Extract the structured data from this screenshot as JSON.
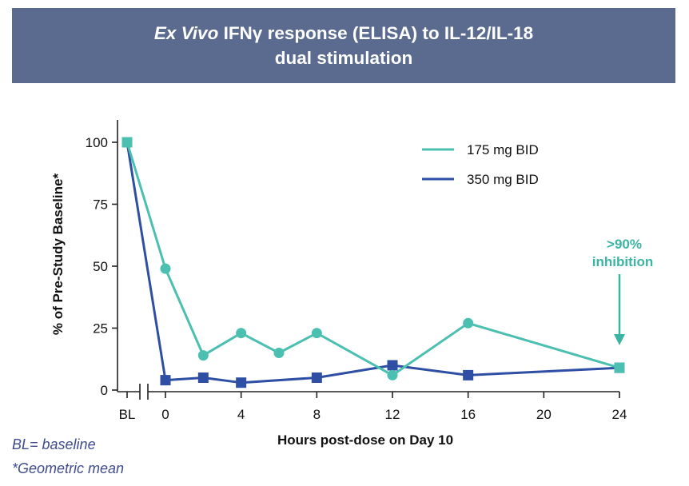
{
  "title": {
    "italic": "Ex Vivo",
    "rest": " IFNγ response (ELISA) to IL-12/IL-18",
    "line2": "dual stimulation"
  },
  "chart_data": {
    "type": "line",
    "xlabel": "Hours post-dose on Day 10",
    "ylabel": "% of Pre-Study Baseline*",
    "ylim": [
      0,
      100
    ],
    "yticks": [
      0,
      25,
      50,
      75,
      100
    ],
    "xticks": [
      "BL",
      "0",
      "4",
      "8",
      "12",
      "16",
      "20",
      "24"
    ],
    "xlim_hours": [
      0,
      24
    ],
    "axis_break": true,
    "legend_position": "top-right",
    "series": [
      {
        "name": "175 mg BID",
        "color": "#4bbfb0",
        "points": [
          {
            "x": "BL",
            "y": 100
          },
          {
            "x": 0,
            "y": 49
          },
          {
            "x": 2,
            "y": 14
          },
          {
            "x": 4,
            "y": 23
          },
          {
            "x": 6,
            "y": 15
          },
          {
            "x": 8,
            "y": 23
          },
          {
            "x": 12,
            "y": 6
          },
          {
            "x": 16,
            "y": 27
          },
          {
            "x": 24,
            "y": 9
          }
        ]
      },
      {
        "name": "350 mg BID",
        "color": "#2e4fa3",
        "points": [
          {
            "x": "BL",
            "y": 100
          },
          {
            "x": 0,
            "y": 4
          },
          {
            "x": 2,
            "y": 5
          },
          {
            "x": 4,
            "y": 3
          },
          {
            "x": 8,
            "y": 5
          },
          {
            "x": 12,
            "y": 10
          },
          {
            "x": 16,
            "y": 6
          },
          {
            "x": 24,
            "y": 9
          }
        ]
      }
    ],
    "annotation": {
      "line1": ">90%",
      "line2": "inhibition",
      "x": 24,
      "color": "#3cb4a4"
    }
  },
  "footnotes": {
    "baseline": "BL= baseline",
    "geomean": "*Geometric mean"
  }
}
